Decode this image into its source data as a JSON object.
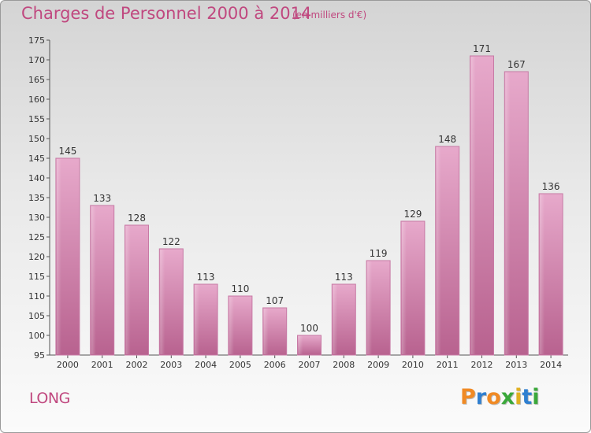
{
  "header": {
    "title": "Charges de Personnel 2000 à 2014",
    "subtitle": "(en milliers d'€)"
  },
  "footer": {
    "town": "LONG",
    "logo": {
      "letters": [
        "P",
        "r",
        "o",
        "x",
        "i",
        "t",
        "i"
      ],
      "colors": [
        "#f08a24",
        "#2f7fd0",
        "#f08a24",
        "#3aa83a",
        "#e0b020",
        "#2f7fd0",
        "#3aa83a"
      ]
    }
  },
  "colors": {
    "bar": "#d88bb5",
    "bar_dark": "#b8628f",
    "text": "#333333",
    "accent": "#c0487f"
  },
  "chart_data": {
    "type": "bar",
    "categories": [
      "2000",
      "2001",
      "2002",
      "2003",
      "2004",
      "2005",
      "2006",
      "2007",
      "2008",
      "2009",
      "2010",
      "2011",
      "2012",
      "2013",
      "2014"
    ],
    "values": [
      145,
      133,
      128,
      122,
      113,
      110,
      107,
      100,
      113,
      119,
      129,
      148,
      171,
      167,
      136
    ],
    "title": "Charges de Personnel 2000 à 2014",
    "xlabel": "",
    "ylabel": "",
    "ylim": [
      95,
      175
    ],
    "yticks": [
      95,
      100,
      105,
      110,
      115,
      120,
      125,
      130,
      135,
      140,
      145,
      150,
      155,
      160,
      165,
      170,
      175
    ],
    "grid": false,
    "data_labels": true
  }
}
